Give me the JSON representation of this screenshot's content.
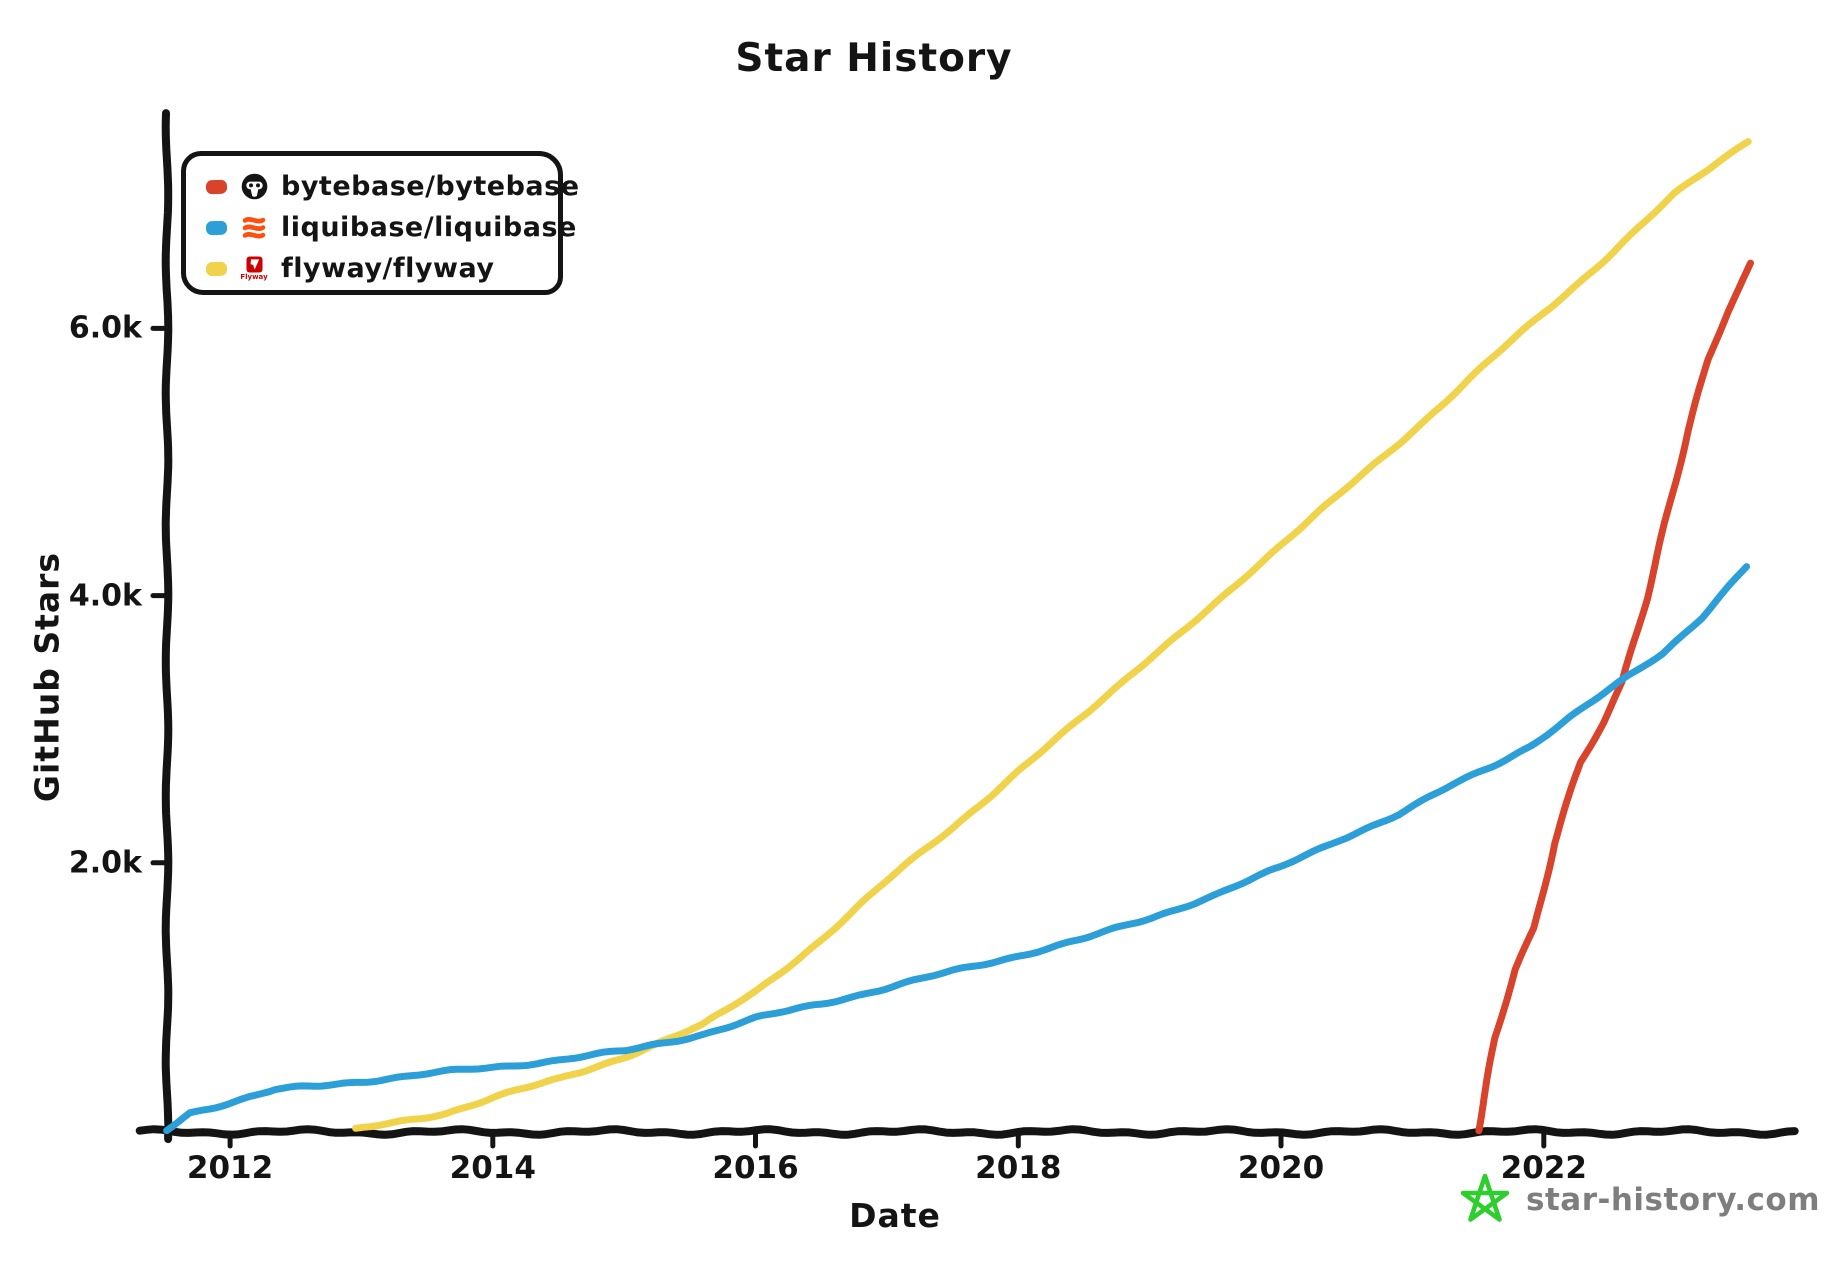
{
  "title": "Star History",
  "legend": {
    "items": [
      {
        "label": "bytebase/bytebase",
        "swatch_color": "#D8432C",
        "icon": "bytebase-logo"
      },
      {
        "label": "liquibase/liquibase",
        "swatch_color": "#2C9FD9",
        "icon": "liquibase-logo"
      },
      {
        "label": "flyway/flyway",
        "swatch_color": "#F1D24B",
        "icon": "flyway-logo",
        "logo_text": "Flyway"
      }
    ]
  },
  "axes": {
    "x_label": "Date",
    "y_label": "GitHub Stars",
    "x_ticks": [
      "2012",
      "2014",
      "2016",
      "2018",
      "2020",
      "2022"
    ],
    "y_ticks": [
      "2.0k",
      "4.0k",
      "6.0k"
    ]
  },
  "watermark": {
    "text": "star-history.com",
    "star_color": "#2FCE2F"
  },
  "colors": {
    "axis": "#141414",
    "text": "#141414",
    "watermark_text": "#7e7e7e",
    "bytebase": "#D8432C",
    "liquibase": "#2C9FD9",
    "flyway": "#F1D24B",
    "liquibase_logo_orange": "#FF4E0D",
    "flyway_logo_red": "#CC0200"
  },
  "chart_data": {
    "type": "line",
    "title": "Star History",
    "xlabel": "Date",
    "ylabel": "GitHub Stars",
    "x_unit": "decimal_year",
    "xlim": [
      2011.52,
      2023.92
    ],
    "ylim": [
      0,
      7620
    ],
    "x_tick_values": [
      2012,
      2014,
      2016,
      2018,
      2020,
      2022
    ],
    "y_tick_values": [
      2000,
      4000,
      6000
    ],
    "grid": false,
    "legend_position": "top-left",
    "series": [
      {
        "name": "bytebase/bytebase",
        "color": "#D8432C",
        "points": [
          [
            2021.5,
            0
          ],
          [
            2021.63,
            700
          ],
          [
            2021.78,
            1200
          ],
          [
            2021.93,
            1520
          ],
          [
            2022.08,
            2150
          ],
          [
            2022.28,
            2760
          ],
          [
            2022.45,
            3060
          ],
          [
            2022.6,
            3360
          ],
          [
            2022.78,
            3980
          ],
          [
            2022.95,
            4650
          ],
          [
            2023.1,
            5250
          ],
          [
            2023.25,
            5780
          ],
          [
            2023.4,
            6130
          ],
          [
            2023.58,
            6500
          ]
        ]
      },
      {
        "name": "liquibase/liquibase",
        "color": "#2C9FD9",
        "points": [
          [
            2011.52,
            0
          ],
          [
            2011.7,
            130
          ],
          [
            2012.0,
            205
          ],
          [
            2012.35,
            300
          ],
          [
            2012.7,
            330
          ],
          [
            2013.0,
            365
          ],
          [
            2013.5,
            420
          ],
          [
            2014.0,
            468
          ],
          [
            2014.5,
            525
          ],
          [
            2015.0,
            590
          ],
          [
            2015.3,
            655
          ],
          [
            2015.6,
            720
          ],
          [
            2016.0,
            835
          ],
          [
            2016.5,
            945
          ],
          [
            2017.05,
            1075
          ],
          [
            2017.5,
            1185
          ],
          [
            2018.0,
            1305
          ],
          [
            2018.5,
            1430
          ],
          [
            2019.0,
            1585
          ],
          [
            2019.5,
            1765
          ],
          [
            2020.0,
            1965
          ],
          [
            2020.45,
            2175
          ],
          [
            2020.9,
            2365
          ],
          [
            2021.3,
            2580
          ],
          [
            2021.6,
            2720
          ],
          [
            2021.9,
            2880
          ],
          [
            2022.2,
            3090
          ],
          [
            2022.6,
            3360
          ],
          [
            2022.9,
            3560
          ],
          [
            2023.2,
            3840
          ],
          [
            2023.55,
            4230
          ]
        ]
      },
      {
        "name": "flyway/flyway",
        "color": "#F1D24B",
        "points": [
          [
            2012.96,
            0
          ],
          [
            2013.3,
            60
          ],
          [
            2013.65,
            130
          ],
          [
            2014.0,
            245
          ],
          [
            2014.5,
            380
          ],
          [
            2015.0,
            550
          ],
          [
            2015.6,
            780
          ],
          [
            2016.0,
            1035
          ],
          [
            2016.5,
            1430
          ],
          [
            2017.05,
            1900
          ],
          [
            2017.5,
            2265
          ],
          [
            2018.0,
            2690
          ],
          [
            2018.5,
            3095
          ],
          [
            2019.0,
            3530
          ],
          [
            2019.5,
            3945
          ],
          [
            2020.0,
            4375
          ],
          [
            2020.5,
            4805
          ],
          [
            2021.0,
            5235
          ],
          [
            2021.5,
            5675
          ],
          [
            2022.0,
            6115
          ],
          [
            2022.5,
            6555
          ],
          [
            2023.0,
            7005
          ],
          [
            2023.55,
            7400
          ]
        ]
      }
    ]
  }
}
